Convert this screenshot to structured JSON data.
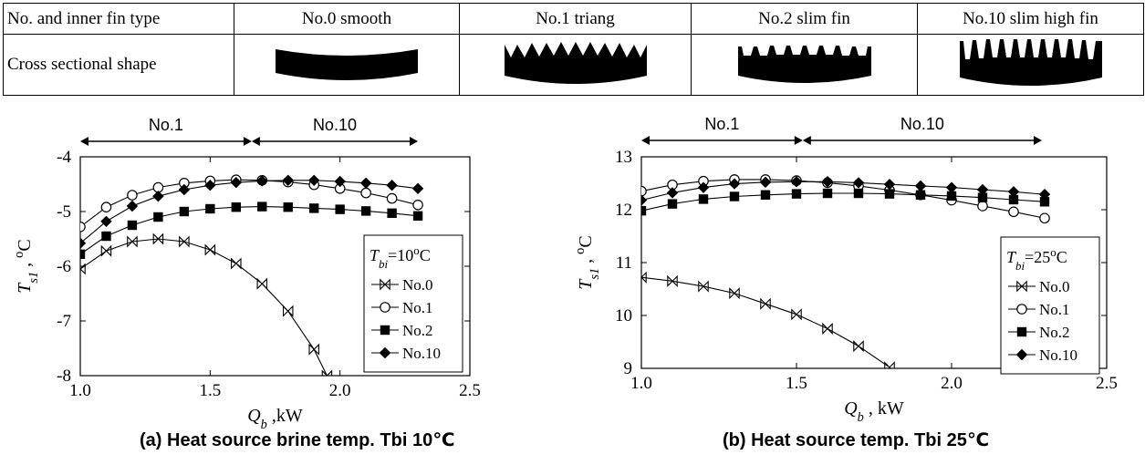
{
  "table": {
    "headers": [
      "No. and inner fin type",
      "No.0 smooth",
      "No.1 triang",
      "No.2 slim fin",
      "No.10 slim high fin"
    ],
    "row_label": "Cross sectional shape",
    "shape_icons": [
      "smooth-cross-section",
      "triangular-fin-cross-section",
      "slim-fin-cross-section",
      "slim-high-fin-cross-section"
    ]
  },
  "markers": {
    "No.0": "bowtie-x",
    "No.1": "open-circle",
    "No.2": "filled-square",
    "No.10": "filled-diamond"
  },
  "chart_data": [
    {
      "type": "line",
      "caption": "(a) Heat source brine temp. Tbi 10℃",
      "xlabel_var": "Q",
      "xlabel_sub": "b",
      "xlabel_unit": " ,kW",
      "ylabel_var": "T",
      "ylabel_sub": "s1",
      "ylabel_unit": " , ",
      "ylabel_sup": "o",
      "ylabel_tail": "C",
      "xlim": [
        1.0,
        2.5
      ],
      "ylim": [
        -8,
        -4
      ],
      "xticks": [
        1.0,
        1.5,
        2.0,
        2.5
      ],
      "xtick_labels": [
        "1.0",
        "1.5",
        "2.0",
        "2.5"
      ],
      "yticks": [
        -8,
        -7,
        -6,
        -5,
        -4
      ],
      "ytick_labels": [
        "-8",
        "-7",
        "-6",
        "-5",
        "-4"
      ],
      "legend_title_var": "T",
      "legend_title_sub": "bi",
      "legend_title_eq": "=10",
      "legend_title_sup": "o",
      "legend_title_tail": "C",
      "legend_placement": "bottom-right",
      "range_labels": [
        "No.1",
        "No.10"
      ],
      "range_spans": [
        [
          1.0,
          1.66
        ],
        [
          1.66,
          2.3
        ]
      ],
      "series": [
        {
          "name": "No.0",
          "x": [
            1.0,
            1.1,
            1.2,
            1.3,
            1.4,
            1.5,
            1.6,
            1.7,
            1.8,
            1.9,
            1.95
          ],
          "y": [
            -6.05,
            -5.72,
            -5.55,
            -5.5,
            -5.55,
            -5.7,
            -5.95,
            -6.32,
            -6.82,
            -7.52,
            -8.0
          ]
        },
        {
          "name": "No.1",
          "x": [
            1.0,
            1.1,
            1.2,
            1.3,
            1.4,
            1.5,
            1.6,
            1.7,
            1.8,
            1.9,
            2.0,
            2.1,
            2.2,
            2.3
          ],
          "y": [
            -5.28,
            -4.92,
            -4.7,
            -4.56,
            -4.48,
            -4.44,
            -4.42,
            -4.43,
            -4.46,
            -4.51,
            -4.58,
            -4.66,
            -4.76,
            -4.88
          ]
        },
        {
          "name": "No.2",
          "x": [
            1.0,
            1.1,
            1.2,
            1.3,
            1.4,
            1.5,
            1.6,
            1.7,
            1.8,
            1.9,
            2.0,
            2.1,
            2.2,
            2.3
          ],
          "y": [
            -5.78,
            -5.45,
            -5.25,
            -5.1,
            -5.0,
            -4.95,
            -4.92,
            -4.91,
            -4.92,
            -4.94,
            -4.96,
            -4.99,
            -5.03,
            -5.08
          ]
        },
        {
          "name": "No.10",
          "x": [
            1.0,
            1.1,
            1.2,
            1.3,
            1.4,
            1.5,
            1.6,
            1.7,
            1.8,
            1.9,
            2.0,
            2.1,
            2.2,
            2.3
          ],
          "y": [
            -5.58,
            -5.18,
            -4.9,
            -4.72,
            -4.6,
            -4.52,
            -4.47,
            -4.44,
            -4.43,
            -4.43,
            -4.45,
            -4.48,
            -4.52,
            -4.58
          ]
        }
      ]
    },
    {
      "type": "line",
      "caption": "(b) Heat source temp. Tbi 25℃",
      "xlabel_var": "Q",
      "xlabel_sub": "b",
      "xlabel_unit": " , kW",
      "ylabel_var": "T",
      "ylabel_sub": "s1",
      "ylabel_unit": " , ",
      "ylabel_sup": "o",
      "ylabel_tail": "C",
      "xlim": [
        1.0,
        2.5
      ],
      "ylim": [
        9,
        13
      ],
      "xticks": [
        1.0,
        1.5,
        2.0,
        2.5
      ],
      "xtick_labels": [
        "1.0",
        "1.5",
        "2.0",
        "2.5"
      ],
      "yticks": [
        9,
        10,
        11,
        12,
        13
      ],
      "ytick_labels": [
        "9",
        "10",
        "11",
        "12",
        "13"
      ],
      "legend_title_var": "T",
      "legend_title_sub": "bi",
      "legend_title_eq": "=25",
      "legend_title_sup": "o",
      "legend_title_tail": "C",
      "legend_placement": "right",
      "range_labels": [
        "No.1",
        "No.10"
      ],
      "range_spans": [
        [
          1.0,
          1.52
        ],
        [
          1.52,
          2.3
        ]
      ],
      "series": [
        {
          "name": "No.0",
          "x": [
            1.0,
            1.1,
            1.2,
            1.3,
            1.4,
            1.5,
            1.6,
            1.7,
            1.8
          ],
          "y": [
            10.72,
            10.65,
            10.55,
            10.42,
            10.22,
            10.02,
            9.75,
            9.42,
            9.02
          ]
        },
        {
          "name": "No.1",
          "x": [
            1.0,
            1.1,
            1.2,
            1.3,
            1.4,
            1.5,
            1.6,
            1.7,
            1.8,
            1.9,
            2.0,
            2.1,
            2.2,
            2.3
          ],
          "y": [
            12.35,
            12.47,
            12.54,
            12.57,
            12.57,
            12.55,
            12.51,
            12.45,
            12.37,
            12.28,
            12.18,
            12.07,
            11.96,
            11.84
          ]
        },
        {
          "name": "No.2",
          "x": [
            1.0,
            1.1,
            1.2,
            1.3,
            1.4,
            1.5,
            1.6,
            1.7,
            1.8,
            1.9,
            2.0,
            2.1,
            2.2,
            2.3
          ],
          "y": [
            11.98,
            12.11,
            12.2,
            12.25,
            12.28,
            12.3,
            12.31,
            12.31,
            12.3,
            12.28,
            12.26,
            12.23,
            12.19,
            12.15
          ]
        },
        {
          "name": "No.10",
          "x": [
            1.0,
            1.1,
            1.2,
            1.3,
            1.4,
            1.5,
            1.6,
            1.7,
            1.8,
            1.9,
            2.0,
            2.1,
            2.2,
            2.3
          ],
          "y": [
            12.18,
            12.32,
            12.42,
            12.49,
            12.52,
            12.53,
            12.53,
            12.51,
            12.48,
            12.45,
            12.42,
            12.38,
            12.34,
            12.29
          ]
        }
      ]
    }
  ]
}
